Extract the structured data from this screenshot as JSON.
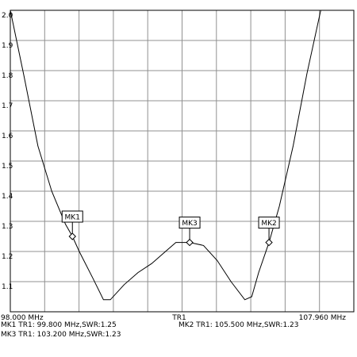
{
  "chart_data": {
    "type": "line",
    "trace": "TR1",
    "x_start_label": "98.000 MHz",
    "x_end_label": "107.960 MHz",
    "xlim": [
      98.0,
      107.96
    ],
    "ylim": [
      1.0,
      2.0
    ],
    "y_ticks": [
      "2.0",
      "1.9",
      "1.8",
      "1.7",
      "1.6",
      "1.5",
      "1.4",
      "1.3",
      "1.2",
      "1.1"
    ],
    "series": [
      {
        "x": [
          98.0,
          98.4,
          98.8,
          99.2,
          99.6,
          99.8,
          100.0,
          100.4,
          100.7,
          100.9,
          101.3,
          101.7,
          102.1,
          102.5,
          102.8,
          103.2,
          103.6,
          104.0,
          104.4,
          104.8,
          105.0,
          105.2,
          105.5,
          105.8,
          106.2,
          106.6,
          107.0,
          107.4,
          107.7
        ],
        "y": [
          2.0,
          1.78,
          1.55,
          1.4,
          1.29,
          1.25,
          1.2,
          1.11,
          1.04,
          1.04,
          1.09,
          1.13,
          1.16,
          1.2,
          1.23,
          1.23,
          1.22,
          1.17,
          1.1,
          1.04,
          1.05,
          1.13,
          1.23,
          1.35,
          1.55,
          1.79,
          2.0,
          2.0,
          2.0
        ]
      }
    ],
    "markers": [
      {
        "label": "MK1",
        "x": 99.8,
        "y": 1.25
      },
      {
        "label": "MK3",
        "x": 103.2,
        "y": 1.23
      },
      {
        "label": "MK2",
        "x": 105.5,
        "y": 1.23
      }
    ],
    "readouts": [
      "MK1 TR1:  99.800 MHz,SWR:1.25",
      "MK2 TR1:  105.500 MHz,SWR:1.23",
      "MK3 TR1:  103.200 MHz,SWR:1.23"
    ],
    "grid": true
  }
}
